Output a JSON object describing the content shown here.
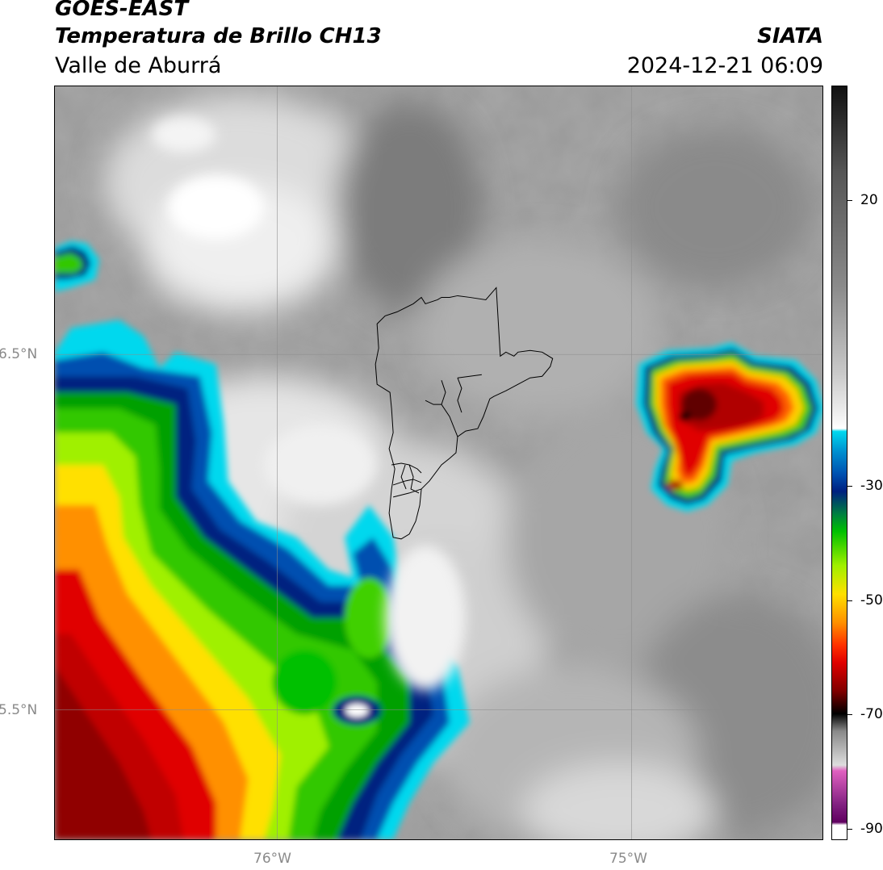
{
  "header": {
    "satellite": "GOES-EAST",
    "product": "Temperatura de Brillo CH13",
    "region": "Valle de Aburrá",
    "agency": "SIATA",
    "timestamp": "2024-12-21 06:09"
  },
  "axes": {
    "x_ticks": [
      {
        "value": -76,
        "label": "76°W"
      },
      {
        "value": -75,
        "label": "75°W"
      }
    ],
    "y_ticks": [
      {
        "value": 6.5,
        "label": "6.5°N"
      },
      {
        "value": 5.5,
        "label": "5.5°N"
      }
    ],
    "lon_range": [
      -76.62,
      -74.45
    ],
    "lat_range": [
      5.12,
      7.25
    ]
  },
  "colorbar": {
    "range": [
      -92,
      40
    ],
    "ticks": [
      {
        "value": 20,
        "label": "20"
      },
      {
        "value": -30,
        "label": "-30"
      },
      {
        "value": -50,
        "label": "-50"
      },
      {
        "value": -70,
        "label": "-70"
      },
      {
        "value": -90,
        "label": "-90"
      }
    ],
    "colors": {
      "warm_gray_top": "#111111",
      "mid_gray": "#8a8a8a",
      "light_gray": "#f2f2f2",
      "cyan": "#00d8ee",
      "blue": "#0050b0",
      "navy": "#002080",
      "green": "#00c000",
      "lime": "#a0f000",
      "yellow": "#ffe000",
      "orange": "#ff9000",
      "red": "#e00000",
      "darkred": "#800000",
      "black": "#000000",
      "pink": "#e060c0",
      "purple": "#802080"
    }
  }
}
